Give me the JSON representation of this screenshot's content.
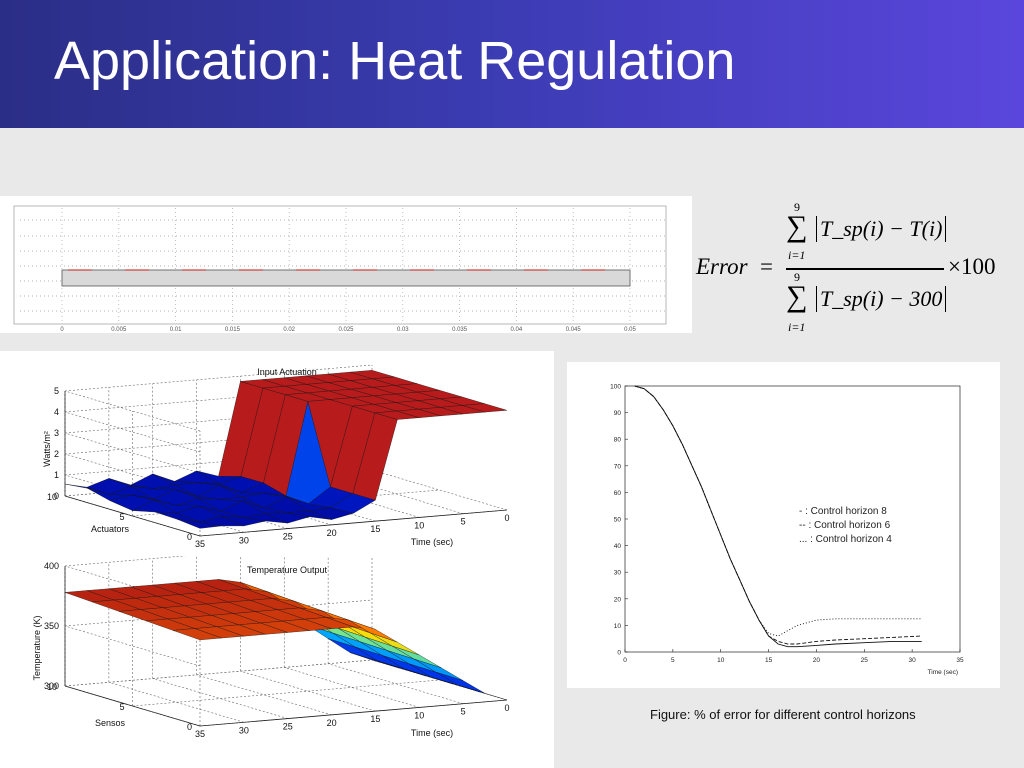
{
  "slide": {
    "title": "Application: Heat Regulation"
  },
  "top_strip": {
    "x_ticks": [
      "0",
      "0.005",
      "0.01",
      "0.015",
      "0.02",
      "0.025",
      "0.03",
      "0.035",
      "0.04",
      "0.045",
      "0.05"
    ]
  },
  "formula": {
    "lhs": "Error",
    "equals": "=",
    "sum_upper": "9",
    "sum_lower": "i=1",
    "numerator": "T_sp(i) − T(i)",
    "denominator": "T_sp(i) − 300",
    "multiplier": "×100"
  },
  "caption": "Figure: % of error for different control horizons",
  "chart_data": [
    {
      "type": "surface3d",
      "title": "Input Actuation",
      "xlabel": "Time (sec)",
      "ylabel": "Actuators",
      "zlabel": "Watts/m²",
      "time_ticks": [
        "35",
        "30",
        "25",
        "20",
        "15",
        "10",
        "5",
        "0"
      ],
      "y_ticks": [
        "0",
        "5",
        "10"
      ],
      "z_ticks": [
        "0",
        "1",
        "2",
        "3",
        "4",
        "5"
      ],
      "zlim": [
        0,
        5
      ]
    },
    {
      "type": "surface3d",
      "title": "Temperature Output",
      "xlabel": "Time (sec)",
      "ylabel": "Sensos",
      "zlabel": "Temperature (K)",
      "time_ticks": [
        "35",
        "30",
        "25",
        "20",
        "15",
        "10",
        "5",
        "0"
      ],
      "y_ticks": [
        "0",
        "5",
        "10"
      ],
      "z_ticks": [
        "300",
        "350",
        "400"
      ],
      "zlim": [
        300,
        400
      ]
    },
    {
      "type": "line",
      "xlabel": "Time (sec)",
      "ylabel": "",
      "xlim": [
        0,
        35
      ],
      "ylim": [
        0,
        100
      ],
      "x_ticks": [
        0,
        5,
        10,
        15,
        20,
        25,
        30,
        35
      ],
      "y_ticks": [
        0,
        10,
        20,
        30,
        40,
        50,
        60,
        70,
        80,
        90,
        100
      ],
      "legend": {
        "placement": "right",
        "entries": [
          "-   : Control horizon 8",
          "-- : Control horizon 6",
          "...  : Control horizon 4"
        ]
      },
      "series": [
        {
          "name": "Control horizon 8",
          "style": "solid",
          "x": [
            1,
            2,
            3,
            4,
            5,
            6,
            7,
            8,
            9,
            10,
            11,
            12,
            13,
            14,
            15,
            16,
            17,
            18,
            20,
            22,
            25,
            28,
            31
          ],
          "y": [
            100,
            99,
            96,
            91,
            85,
            78,
            70,
            62,
            53,
            44,
            35,
            27,
            19,
            12,
            6,
            3,
            2,
            2,
            2.5,
            3,
            3.5,
            4,
            4
          ]
        },
        {
          "name": "Control horizon 6",
          "style": "dashed",
          "x": [
            1,
            2,
            3,
            4,
            5,
            6,
            7,
            8,
            9,
            10,
            11,
            12,
            13,
            14,
            15,
            16,
            17,
            18,
            20,
            22,
            25,
            28,
            31
          ],
          "y": [
            100,
            99,
            96,
            91,
            85,
            78,
            70,
            62,
            53,
            44,
            35,
            27,
            19,
            12,
            6,
            4,
            3,
            3,
            4,
            4.5,
            5,
            5.5,
            6
          ]
        },
        {
          "name": "Control horizon 4",
          "style": "dotted",
          "x": [
            1,
            2,
            3,
            4,
            5,
            6,
            7,
            8,
            9,
            10,
            11,
            12,
            13,
            14,
            15,
            16,
            17,
            18,
            20,
            22,
            25,
            28,
            31
          ],
          "y": [
            100,
            99,
            96,
            91,
            85,
            78,
            70,
            62,
            53,
            44,
            35,
            27,
            19,
            12,
            7,
            6,
            8,
            10,
            12,
            12.5,
            12.5,
            12.5,
            12.5
          ]
        }
      ]
    }
  ]
}
